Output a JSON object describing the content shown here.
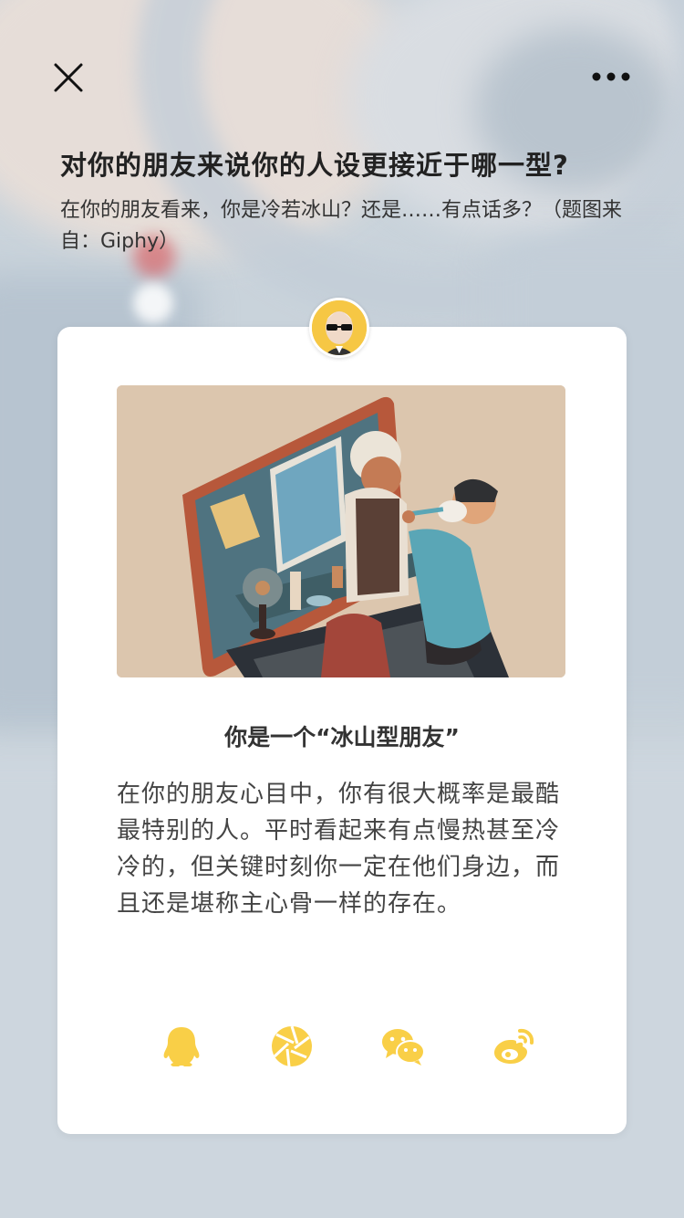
{
  "header": {
    "title": "对你的朋友来说你的人设更接近于哪一型?",
    "subtitle": "在你的朋友看来，你是冷若冰山？还是……有点话多？（题图来自：Giphy）"
  },
  "icons": {
    "close": "close-icon",
    "more": "more-icon"
  },
  "card": {
    "result_title": "你是一个“冰山型朋友”",
    "result_description": "在你的朋友心目中，你有很大概率是最酷最特别的人。平时看起来有点慢热甚至冷冷的，但关键时刻你一定在他们身边，而且还是堪称主心骨一样的存在。",
    "share": [
      {
        "name": "qq",
        "icon": "qq-icon"
      },
      {
        "name": "moments",
        "icon": "moments-icon"
      },
      {
        "name": "wechat",
        "icon": "wechat-icon"
      },
      {
        "name": "weibo",
        "icon": "weibo-icon"
      }
    ]
  },
  "colors": {
    "accent": "#f9cf47",
    "title": "#222222",
    "text": "#444444"
  }
}
